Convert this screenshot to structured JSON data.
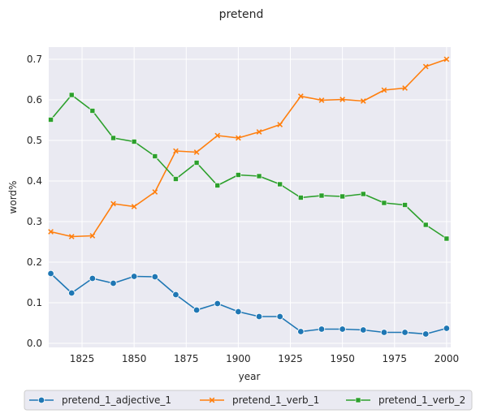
{
  "chart_data": {
    "type": "line",
    "title": "pretend",
    "xlabel": "year",
    "ylabel": "word%",
    "xlim": [
      1809,
      2002
    ],
    "ylim": [
      -0.01,
      0.73
    ],
    "xticks": [
      1825,
      1850,
      1875,
      1900,
      1925,
      1950,
      1975,
      2000
    ],
    "yticks": [
      0.0,
      0.1,
      0.2,
      0.3,
      0.4,
      0.5,
      0.6,
      0.7
    ],
    "grid": true,
    "legend_position": "bottom",
    "x": [
      1810,
      1820,
      1830,
      1840,
      1850,
      1860,
      1870,
      1880,
      1890,
      1900,
      1910,
      1920,
      1930,
      1940,
      1950,
      1960,
      1970,
      1980,
      1990,
      2000
    ],
    "series": [
      {
        "name": "pretend_1_adjective_1",
        "color": "#1f77b4",
        "marker": "circle",
        "values": [
          0.172,
          0.124,
          0.16,
          0.148,
          0.165,
          0.164,
          0.12,
          0.082,
          0.098,
          0.078,
          0.066,
          0.066,
          0.029,
          0.035,
          0.035,
          0.033,
          0.027,
          0.027,
          0.023,
          0.037
        ]
      },
      {
        "name": "pretend_1_verb_1",
        "color": "#ff7f0e",
        "marker": "x",
        "values": [
          0.275,
          0.263,
          0.265,
          0.344,
          0.337,
          0.373,
          0.474,
          0.471,
          0.512,
          0.506,
          0.521,
          0.539,
          0.609,
          0.599,
          0.601,
          0.597,
          0.624,
          0.629,
          0.682,
          0.7
        ]
      },
      {
        "name": "pretend_1_verb_2",
        "color": "#2ca02c",
        "marker": "square",
        "values": [
          0.551,
          0.612,
          0.573,
          0.506,
          0.497,
          0.461,
          0.405,
          0.445,
          0.389,
          0.415,
          0.412,
          0.392,
          0.359,
          0.364,
          0.362,
          0.368,
          0.346,
          0.341,
          0.292,
          0.258
        ]
      }
    ]
  }
}
